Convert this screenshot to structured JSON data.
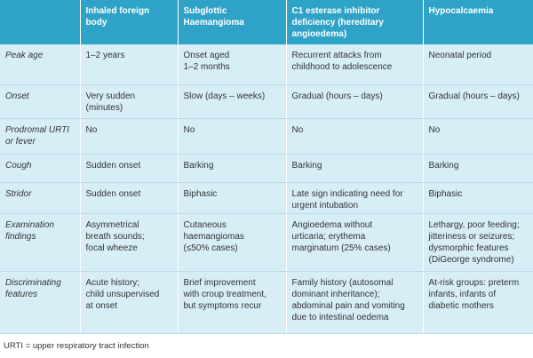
{
  "table": {
    "header": [
      [
        "Inhaled foreign",
        "body"
      ],
      [
        "Subglottic",
        "Haemangioma"
      ],
      [
        "C1 esterase inhibitor",
        "deficiency (hereditary",
        "angioedema)"
      ],
      [
        "Hypocalcaemia"
      ]
    ],
    "rows": [
      [
        [
          "Peak age"
        ],
        [
          "1–2 years"
        ],
        [
          "Onset aged",
          "1–2 months"
        ],
        [
          "Recurrent attacks from",
          "childhood to adolescence"
        ],
        [
          "Neonatal period"
        ]
      ],
      [
        [
          "Onset"
        ],
        [
          "Very sudden",
          "(minutes)"
        ],
        [
          "Slow (days – weeks)"
        ],
        [
          "Gradual (hours – days)"
        ],
        [
          "Gradual (hours – days)"
        ]
      ],
      [
        [
          "Prodromal URTI",
          "or fever"
        ],
        [
          "No"
        ],
        [
          "No"
        ],
        [
          "No"
        ],
        [
          "No"
        ]
      ],
      [
        [
          "Cough"
        ],
        [
          "Sudden onset"
        ],
        [
          "Barking"
        ],
        [
          "Barking"
        ],
        [
          "Barking"
        ]
      ],
      [
        [
          "Stridor"
        ],
        [
          "Sudden onset"
        ],
        [
          "Biphasic"
        ],
        [
          "Late sign indicating need for",
          "urgent intubation"
        ],
        [
          "Biphasic"
        ]
      ],
      [
        [
          "Examination",
          "findings"
        ],
        [
          "Asymmetrical",
          "breath sounds;",
          "focal wheeze"
        ],
        [
          "Cutaneous",
          "haemangiomas",
          "(≤50% cases)"
        ],
        [
          "Angioedema without",
          "urticaria; erythema",
          "marginatum (25% cases)"
        ],
        [
          "Lethargy, poor feeding;",
          "jitteriness or seizures;",
          "dysmorphic features",
          "(DiGeorge syndrome)"
        ]
      ],
      [
        [
          "Discriminating",
          "features"
        ],
        [
          "Acute history;",
          "child unsupervised",
          "at onset"
        ],
        [
          "Brief improvement",
          "with croup treatment,",
          "but symptoms recur"
        ],
        [
          "Family history (autosomal",
          "dominant inheritance);",
          "abdominal pain and vomiting",
          "due to intestinal oedema"
        ],
        [
          "At-risk groups: preterm",
          "infants, infants of",
          "diabetic mothers"
        ]
      ]
    ],
    "footnote": "URTI = upper respiratory tract infection"
  }
}
